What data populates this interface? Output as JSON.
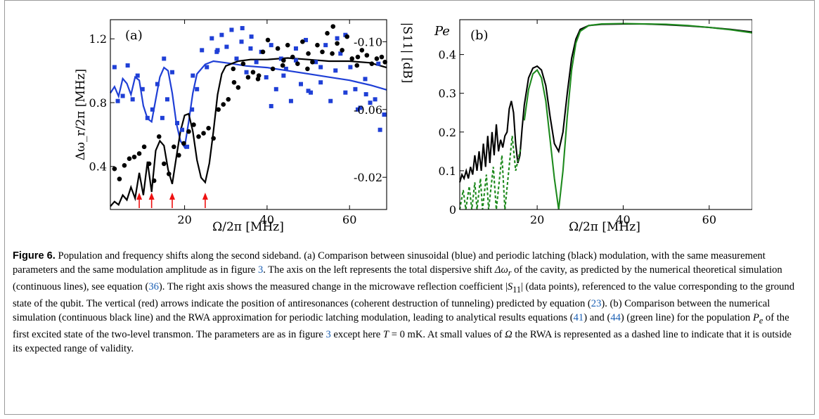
{
  "panels": [
    {
      "label": "(a)",
      "xlabel": "Ω/2π [MHz]",
      "ylabel": "Δω_r/2π [MHz]",
      "y2label": "|S11| [dB]",
      "x_ticks": [
        "20",
        "40",
        "60"
      ],
      "y_ticks": [
        "0.4",
        "0.8",
        "1.2"
      ],
      "y2_ticks": [
        "-0.02",
        "-0.06",
        "-0.10"
      ]
    },
    {
      "label": "(b)",
      "xlabel": "Ω/2π [MHz]",
      "ylabel": "Pe",
      "x_ticks": [
        "20",
        "40",
        "60"
      ],
      "y_ticks": [
        "0",
        "0.1",
        "0.2",
        "0.3",
        "0.4"
      ]
    }
  ],
  "colors": {
    "blue": "#1f3fd6",
    "black": "#000000",
    "green": "#1e8a1e",
    "red": "#ee1111",
    "link": "#1a5fb4"
  },
  "caption": {
    "figure_label": "Figure 6.",
    "t1": " Population and frequency shifts along the second sideband. (a) Comparison between sinusoidal (blue) and periodic latching (black) modulation, with the same measurement parameters and the same modulation amplitude as in figure ",
    "ref1": "3",
    "t2": ". The axis on the left represents the total dispersive shift ",
    "sym1": "Δω",
    "sym1sub": "r",
    "t3": " of the cavity, as predicted by the numerical theoretical simulation (continuous lines), see equation (",
    "ref2": "36",
    "t4": "). The right axis shows the measured change in the microwave reflection coefficient |",
    "sym2": "S",
    "sym2sub": "11",
    "t5": "| (data points), referenced to the value corresponding to the ground state of the qubit. The vertical (red) arrows indicate the position of antiresonances (coherent destruction of tunneling) predicted by equation (",
    "ref3": "23",
    "t6": "). (b) Comparison between the numerical simulation (continuous black line) and the RWA approximation for periodic latching modulation, leading to analytical results equations (",
    "ref4": "41",
    "t7": ") and (",
    "ref5": "44",
    "t8": ") (green line) for the population ",
    "sym3": "P",
    "sym3sub": "e",
    "t9": " of the first excited state of the two-level transmon. The parameters are as in figure ",
    "ref6": "3",
    "t10": " except here ",
    "sym4": "T",
    "t11": " = 0 mK. At small values of ",
    "sym5": "Ω",
    "t12": " the RWA is represented as a dashed line to indicate that it is outside its expected range of validity."
  },
  "chart_data": [
    {
      "type": "line",
      "panel": "(a)",
      "xlabel": "Ω/2π [MHz]",
      "ylabel": "Δω_r/2π [MHz]",
      "y2label": "|S11| [dB]",
      "xlim": [
        2,
        69
      ],
      "ylim": [
        0.13,
        1.32
      ],
      "y2lim": [
        -0.001,
        -0.113
      ],
      "arrows_x": [
        9.0,
        12.0,
        17.0,
        25.0
      ],
      "series": [
        {
          "axis": "left",
          "color": "blue",
          "style": "solid",
          "x": [
            2,
            3,
            4,
            5,
            6,
            7,
            8,
            9,
            10,
            11,
            12,
            13,
            14,
            15,
            16,
            17,
            18,
            19,
            20,
            21,
            22,
            23,
            25,
            27,
            30,
            35,
            40,
            45,
            50,
            55,
            60,
            65,
            69
          ],
          "y": [
            0.86,
            0.9,
            0.84,
            0.95,
            0.92,
            0.85,
            0.96,
            0.94,
            0.78,
            0.7,
            0.68,
            0.82,
            0.96,
            1.02,
            1.0,
            0.86,
            0.67,
            0.56,
            0.52,
            0.68,
            0.86,
            0.98,
            1.04,
            1.06,
            1.05,
            1.03,
            1.02,
            1.0,
            0.98,
            0.96,
            0.94,
            0.91,
            0.88
          ]
        },
        {
          "axis": "left",
          "color": "black",
          "style": "solid",
          "x": [
            2,
            3,
            4,
            5,
            6,
            7,
            8,
            9,
            10,
            11,
            12,
            13,
            14,
            15,
            16,
            17,
            18,
            19,
            20,
            21,
            22,
            23,
            24,
            25,
            26,
            27,
            28,
            29,
            30,
            33,
            36,
            40,
            45,
            50,
            55,
            60,
            65,
            69
          ],
          "y": [
            0.15,
            0.18,
            0.16,
            0.22,
            0.19,
            0.27,
            0.2,
            0.36,
            0.22,
            0.43,
            0.24,
            0.5,
            0.56,
            0.53,
            0.38,
            0.29,
            0.46,
            0.62,
            0.72,
            0.73,
            0.62,
            0.44,
            0.33,
            0.3,
            0.42,
            0.62,
            0.85,
            0.98,
            1.03,
            1.06,
            1.07,
            1.07,
            1.08,
            1.07,
            1.06,
            1.06,
            1.05,
            1.02
          ]
        },
        {
          "axis": "right",
          "color": "blue",
          "style": "markers",
          "marker": "square",
          "x": [
            3,
            3.8,
            5,
            6.2,
            7.4,
            8.6,
            9.8,
            11,
            12.2,
            13.4,
            14.6,
            15.8,
            17,
            18.2,
            19.4,
            20.6,
            21.8,
            23,
            24.2,
            25.4,
            26.6,
            27.8,
            29,
            30.2,
            31.4,
            32.6,
            33.8,
            35,
            36.2,
            37.4,
            38.6,
            39.8,
            41,
            42.2,
            43.4,
            44.6,
            45.8,
            47,
            48.2,
            49.4,
            50.6,
            51.8,
            53,
            54.2,
            55.4,
            56.6,
            57.8,
            59,
            60.2,
            61.4,
            62.6,
            63.8,
            65,
            66.2,
            67.4,
            68.4,
            15,
            22,
            28,
            34,
            41,
            47,
            53,
            59,
            64,
            36,
            44,
            50,
            57,
            62,
            67
          ],
          "y": [
            -0.085,
            -0.065,
            -0.068,
            -0.086,
            -0.066,
            -0.08,
            -0.072,
            -0.055,
            -0.06,
            -0.075,
            -0.055,
            -0.066,
            -0.082,
            -0.052,
            -0.048,
            -0.038,
            -0.06,
            -0.072,
            -0.095,
            -0.085,
            -0.102,
            -0.094,
            -0.104,
            -0.097,
            -0.107,
            -0.09,
            -0.1,
            -0.082,
            -0.103,
            -0.088,
            -0.094,
            -0.079,
            -0.098,
            -0.072,
            -0.09,
            -0.084,
            -0.065,
            -0.096,
            -0.075,
            -0.101,
            -0.07,
            -0.088,
            -0.076,
            -0.098,
            -0.065,
            -0.083,
            -0.093,
            -0.07,
            -0.085,
            -0.072,
            -0.061,
            -0.078,
            -0.064,
            -0.066,
            -0.048,
            -0.057,
            -0.09,
            -0.08,
            -0.095,
            -0.108,
            -0.062,
            -0.089,
            -0.085,
            -0.104,
            -0.069,
            -0.096,
            -0.08,
            -0.071,
            -0.102,
            -0.06,
            -0.087
          ]
        },
        {
          "axis": "right",
          "color": "black",
          "style": "markers",
          "marker": "circle",
          "x": [
            3,
            4.2,
            5.4,
            6.6,
            7.8,
            9,
            10.2,
            11.4,
            12.6,
            13.8,
            15,
            16.2,
            17.4,
            18.6,
            19.8,
            21,
            22.2,
            23.4,
            24.6,
            25.8,
            27,
            28.2,
            29.4,
            30.6,
            31.8,
            33,
            34.2,
            35.4,
            36.6,
            37.8,
            39,
            40.2,
            41.4,
            42.6,
            43.8,
            45,
            46.2,
            47.4,
            48.6,
            49.8,
            51,
            52.2,
            53.4,
            54.6,
            55.8,
            57,
            58.2,
            59.4,
            60.6,
            61.8,
            63,
            64.2,
            65.4,
            66.6,
            67.8,
            68.6,
            32,
            38,
            44,
            50,
            56,
            62
          ],
          "y": [
            -0.025,
            -0.019,
            -0.027,
            -0.031,
            -0.032,
            -0.034,
            -0.038,
            -0.028,
            -0.018,
            -0.044,
            -0.028,
            -0.022,
            -0.038,
            -0.033,
            -0.04,
            -0.047,
            -0.051,
            -0.044,
            -0.046,
            -0.049,
            -0.043,
            -0.06,
            -0.063,
            -0.066,
            -0.084,
            -0.073,
            -0.087,
            -0.079,
            -0.082,
            -0.078,
            -0.094,
            -0.101,
            -0.084,
            -0.096,
            -0.086,
            -0.098,
            -0.091,
            -0.087,
            -0.1,
            -0.084,
            -0.088,
            -0.098,
            -0.094,
            -0.105,
            -0.093,
            -0.099,
            -0.095,
            -0.103,
            -0.09,
            -0.086,
            -0.095,
            -0.092,
            -0.087,
            -0.09,
            -0.091,
            -0.088,
            -0.076,
            -0.08,
            -0.089,
            -0.093,
            -0.109,
            -0.091
          ]
        }
      ]
    },
    {
      "type": "line",
      "panel": "(b)",
      "xlabel": "Ω/2π [MHz]",
      "ylabel": "Pe",
      "xlim": [
        2,
        70
      ],
      "ylim": [
        0,
        0.49
      ],
      "series": [
        {
          "color": "black",
          "style": "solid",
          "x": [
            2,
            2.5,
            3,
            3.5,
            4,
            4.5,
            5,
            5.5,
            6,
            6.5,
            7,
            7.5,
            8,
            8.5,
            9,
            9.5,
            10,
            10.5,
            11,
            11.5,
            12,
            12.5,
            13,
            13.5,
            14,
            14.5,
            15,
            15.5,
            16,
            16.5,
            17,
            18,
            19,
            20,
            21,
            22,
            23,
            24,
            25,
            26,
            27,
            28,
            29,
            30,
            32,
            35,
            40,
            45,
            50,
            55,
            60,
            65,
            70
          ],
          "y": [
            0.07,
            0.09,
            0.08,
            0.1,
            0.08,
            0.11,
            0.09,
            0.14,
            0.1,
            0.15,
            0.1,
            0.17,
            0.11,
            0.19,
            0.12,
            0.2,
            0.14,
            0.22,
            0.15,
            0.18,
            0.16,
            0.19,
            0.2,
            0.26,
            0.28,
            0.25,
            0.17,
            0.12,
            0.14,
            0.21,
            0.27,
            0.34,
            0.365,
            0.37,
            0.36,
            0.32,
            0.24,
            0.17,
            0.15,
            0.2,
            0.3,
            0.39,
            0.44,
            0.465,
            0.475,
            0.478,
            0.479,
            0.479,
            0.477,
            0.474,
            0.47,
            0.465,
            0.458
          ]
        },
        {
          "color": "green",
          "style": "dashed",
          "x": [
            2.0,
            2.8,
            3.4,
            4.2,
            4.8,
            5.5,
            6.0,
            6.8,
            7.3,
            8.2,
            8.7,
            9.8,
            10.5,
            11.8,
            12.5,
            14.2,
            15.0,
            16.2
          ],
          "y": [
            0.0,
            0.05,
            0.0,
            0.06,
            0.0,
            0.07,
            0.0,
            0.08,
            0.0,
            0.09,
            0.0,
            0.11,
            0.0,
            0.14,
            0.0,
            0.19,
            0.1,
            0.16
          ]
        },
        {
          "color": "green",
          "style": "solid",
          "x": [
            17,
            18,
            19,
            20,
            21,
            22,
            23,
            24,
            25,
            26,
            27,
            28,
            29,
            30,
            32,
            35,
            40,
            45,
            50,
            55,
            60,
            65,
            70
          ],
          "y": [
            0.23,
            0.31,
            0.35,
            0.36,
            0.34,
            0.28,
            0.18,
            0.08,
            0.0,
            0.1,
            0.24,
            0.36,
            0.43,
            0.46,
            0.475,
            0.479,
            0.48,
            0.479,
            0.478,
            0.475,
            0.47,
            0.464,
            0.456
          ]
        }
      ]
    }
  ]
}
